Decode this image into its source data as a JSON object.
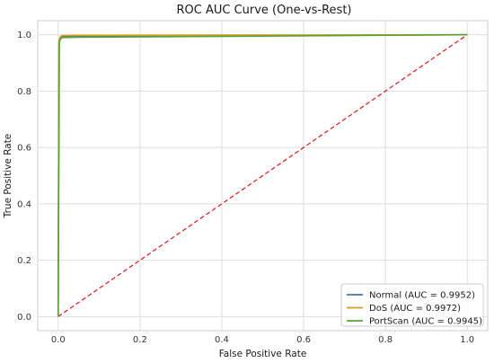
{
  "chart_data": {
    "type": "line",
    "title": "ROC AUC Curve (One-vs-Rest)",
    "xlabel": "False Positive Rate",
    "ylabel": "True Positive Rate",
    "xlim": [
      -0.05,
      1.05
    ],
    "ylim": [
      -0.05,
      1.05
    ],
    "xticks": [
      "0.0",
      "0.2",
      "0.4",
      "0.6",
      "0.8",
      "1.0"
    ],
    "yticks": [
      "0.0",
      "0.2",
      "0.4",
      "0.6",
      "0.8",
      "1.0"
    ],
    "grid": true,
    "legend_position": "lower-right",
    "series": [
      {
        "name": "Normal (AUC = 0.9952)",
        "color": "#4c72b0",
        "points": [
          [
            0,
            0
          ],
          [
            0.002,
            0.97
          ],
          [
            0.005,
            0.99
          ],
          [
            0.01,
            0.993
          ],
          [
            0.05,
            0.995
          ],
          [
            1.0,
            1.0
          ]
        ]
      },
      {
        "name": "DoS (AUC = 0.9972)",
        "color": "#dd9a1c",
        "points": [
          [
            0,
            0
          ],
          [
            0.002,
            0.98
          ],
          [
            0.005,
            0.993
          ],
          [
            0.01,
            0.997
          ],
          [
            0.05,
            0.998
          ],
          [
            1.0,
            1.0
          ]
        ]
      },
      {
        "name": "PortScan (AUC = 0.9945)",
        "color": "#55a630",
        "points": [
          [
            0,
            0
          ],
          [
            0.003,
            0.975
          ],
          [
            0.006,
            0.985
          ],
          [
            0.01,
            0.99
          ],
          [
            0.05,
            0.991
          ],
          [
            1.0,
            1.0
          ]
        ]
      }
    ],
    "reference_line": {
      "color": "#d62728",
      "style": "dashed",
      "points": [
        [
          0,
          0
        ],
        [
          1,
          1
        ]
      ]
    }
  }
}
